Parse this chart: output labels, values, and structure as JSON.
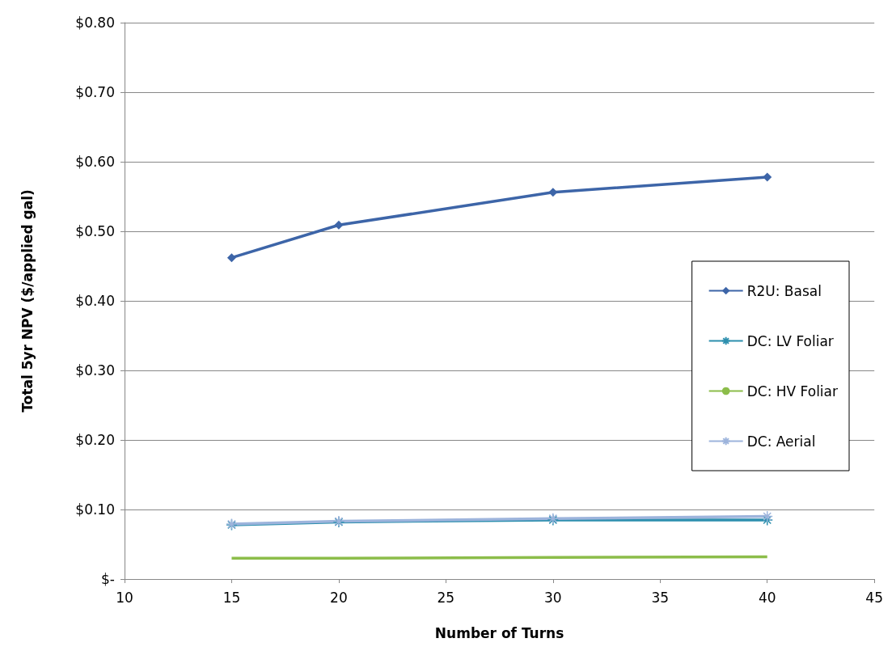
{
  "chart_data": {
    "type": "line",
    "xlabel": "Number of Turns",
    "ylabel": "Total 5yr NPV ($/applied gal)",
    "xlim": [
      10,
      45
    ],
    "xticks": [
      10,
      15,
      20,
      25,
      30,
      35,
      40,
      45
    ],
    "ylim": [
      0,
      0.8
    ],
    "yticks": [
      {
        "value": 0,
        "label": "$-"
      },
      {
        "value": 0.1,
        "label": "$0.10"
      },
      {
        "value": 0.2,
        "label": "$0.20"
      },
      {
        "value": 0.3,
        "label": "$0.30"
      },
      {
        "value": 0.4,
        "label": "$0.40"
      },
      {
        "value": 0.5,
        "label": "$0.50"
      },
      {
        "value": 0.6,
        "label": "$0.60"
      },
      {
        "value": 0.7,
        "label": "$0.70"
      },
      {
        "value": 0.8,
        "label": "$0.80"
      }
    ],
    "x": [
      15,
      20,
      30,
      40
    ],
    "series": [
      {
        "name": "R2U: Basal",
        "color": "#3d65a8",
        "marker": "diamond",
        "values": [
          0.462,
          0.509,
          0.556,
          0.578
        ]
      },
      {
        "name": "DC: LV Foliar",
        "color": "#2d8fae",
        "marker": "cross",
        "values": [
          0.078,
          0.082,
          0.085,
          0.085
        ]
      },
      {
        "name": "DC: HV Foliar",
        "color": "#8cbd4a",
        "marker": "none",
        "values": [
          0.03,
          0.03,
          0.031,
          0.032
        ]
      },
      {
        "name": "DC: Aerial",
        "color": "#9db4dc",
        "marker": "cross",
        "values": [
          0.079,
          0.083,
          0.087,
          0.09
        ]
      }
    ],
    "grid": "y",
    "legend": "right"
  }
}
